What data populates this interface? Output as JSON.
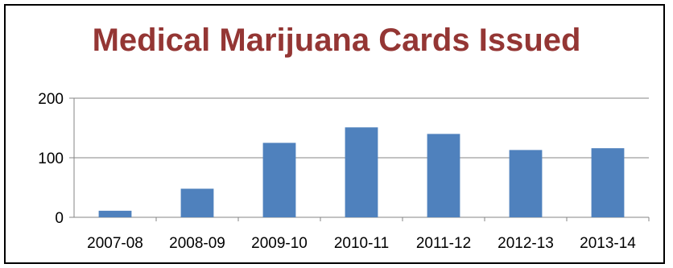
{
  "chart_data": {
    "type": "bar",
    "title": "Medical Marijuana Cards Issued",
    "xlabel": "",
    "ylabel": "",
    "categories": [
      "2007-08",
      "2008-09",
      "2009-10",
      "2010-11",
      "2011-12",
      "2012-13",
      "2013-14"
    ],
    "values": [
      11,
      48,
      125,
      151,
      140,
      113,
      116
    ],
    "ylim": [
      0,
      200
    ],
    "yticks": [
      0,
      100,
      200
    ],
    "grid": "horizontal",
    "legend": "none",
    "bar_color": "#4F81BD",
    "title_color": "#943634"
  }
}
